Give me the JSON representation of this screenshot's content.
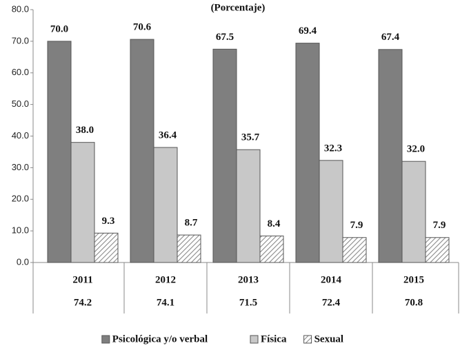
{
  "chart_data": {
    "type": "bar",
    "subtitle": "(Porcentaje)",
    "categories": [
      "2011",
      "2012",
      "2013",
      "2014",
      "2015"
    ],
    "totals": [
      74.2,
      74.1,
      71.5,
      72.4,
      70.8
    ],
    "series": [
      {
        "name": "Psicológica y/o verbal",
        "color": "#7f7f7f",
        "values": [
          70.0,
          70.6,
          67.5,
          69.4,
          67.4
        ],
        "value_labels": [
          "70.0",
          "70.6",
          "67.5",
          "69.4",
          "67.4"
        ]
      },
      {
        "name": "Física",
        "color": "#c8c8c8",
        "values": [
          38.0,
          36.4,
          35.7,
          32.3,
          32.0
        ],
        "value_labels": [
          "38.0",
          "36.4",
          "35.7",
          "32.3",
          "32.0"
        ]
      },
      {
        "name": "Sexual",
        "color": "#8a8a8a",
        "pattern": "hatch",
        "values": [
          9.3,
          8.7,
          8.4,
          7.9,
          7.9
        ],
        "value_labels": [
          "9.3",
          "8.7",
          "8.4",
          "7.9",
          "7.9"
        ]
      }
    ],
    "ylim": [
      0,
      80
    ],
    "yticks": [
      {
        "value": 0,
        "label": "0.0"
      },
      {
        "value": 10,
        "label": "10.0"
      },
      {
        "value": 20,
        "label": "20.0"
      },
      {
        "value": 30,
        "label": "30.0"
      },
      {
        "value": 40,
        "label": "40.0"
      },
      {
        "value": 50,
        "label": "50.0"
      },
      {
        "value": 60,
        "label": "60.0"
      },
      {
        "value": 70,
        "label": "70.0"
      },
      {
        "value": 80,
        "label": "80.0"
      }
    ],
    "grid": false,
    "legend": "bottom"
  }
}
